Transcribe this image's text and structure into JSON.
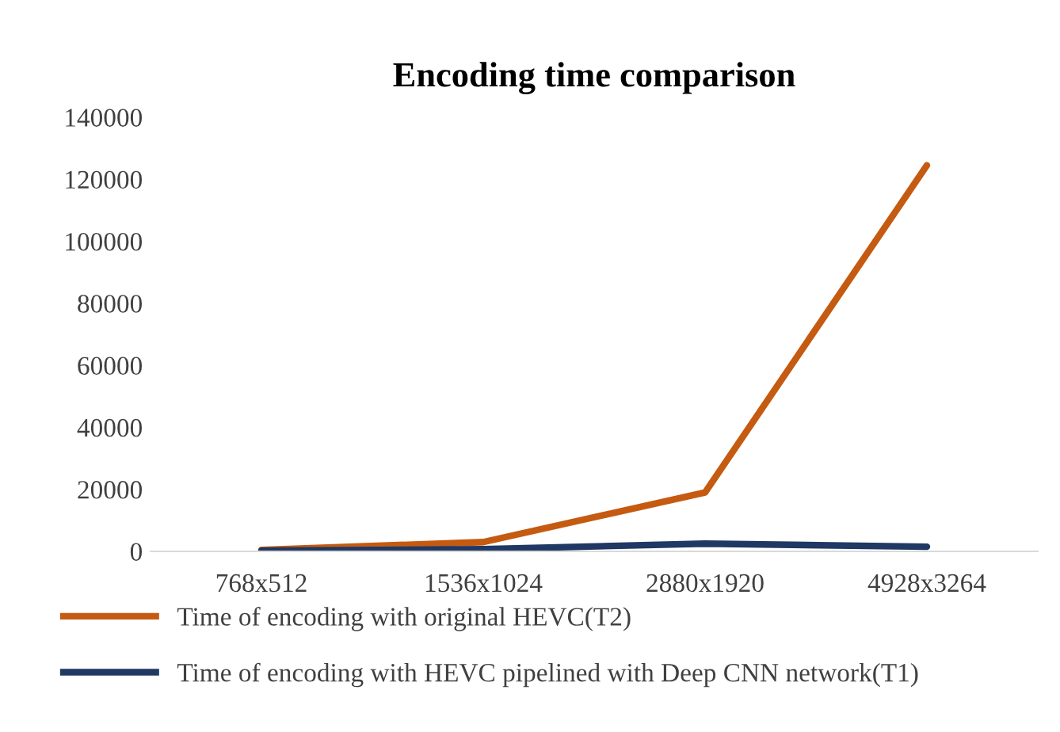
{
  "chart_data": {
    "type": "line",
    "title": "Encoding time comparison",
    "categories": [
      "768x512",
      "1536x1024",
      "2880x1920",
      "4928x3264"
    ],
    "series": [
      {
        "name": "Time of encoding with original HEVC(T2)",
        "color": "#c55a11",
        "values": [
          500,
          3000,
          19000,
          124500
        ]
      },
      {
        "name": "Time of encoding with HEVC pipelined with Deep CNN network(T1)",
        "color": "#1f3864",
        "values": [
          200,
          700,
          2500,
          1500
        ]
      }
    ],
    "ylim": [
      0,
      140000
    ],
    "yticks": [
      0,
      20000,
      40000,
      60000,
      80000,
      100000,
      120000,
      140000
    ],
    "grid": false,
    "legend": "bottom",
    "marker": "none",
    "line_style": "solid"
  }
}
